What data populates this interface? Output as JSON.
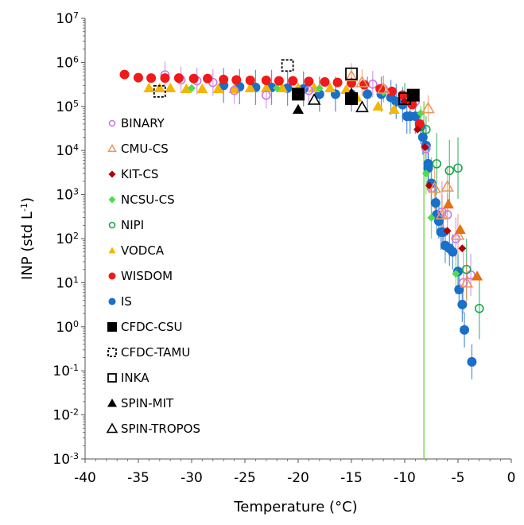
{
  "chart_data": {
    "type": "scatter",
    "title": "",
    "xlabel": "Temperature (°C)",
    "ylabel_main": "INP (std L",
    "ylabel_sup": "-1",
    "ylabel_close": ")",
    "xlim": [
      -40,
      0
    ],
    "ylim": [
      0.001,
      10000000
    ],
    "yscale": "log",
    "grid": false,
    "legend_position": "left-inside",
    "x_ticks": [
      {
        "value": -40,
        "label": "-40"
      },
      {
        "value": -35,
        "label": "-35"
      },
      {
        "value": -30,
        "label": "-30"
      },
      {
        "value": -25,
        "label": "-25"
      },
      {
        "value": -20,
        "label": "-20"
      },
      {
        "value": -15,
        "label": "-15"
      },
      {
        "value": -10,
        "label": "-10"
      },
      {
        "value": -5,
        "label": "-5"
      },
      {
        "value": 0,
        "label": "0"
      }
    ],
    "y_ticks": [
      {
        "exp": -3,
        "base": "10",
        "sup": "-3"
      },
      {
        "exp": -2,
        "base": "10",
        "sup": "-2"
      },
      {
        "exp": -1,
        "base": "10",
        "sup": "-1"
      },
      {
        "exp": 0,
        "base": "10",
        "sup": "0"
      },
      {
        "exp": 1,
        "base": "10",
        "sup": "1"
      },
      {
        "exp": 2,
        "base": "10",
        "sup": "2"
      },
      {
        "exp": 3,
        "base": "10",
        "sup": "3"
      },
      {
        "exp": 4,
        "base": "10",
        "sup": "4"
      },
      {
        "exp": 5,
        "base": "10",
        "sup": "5"
      },
      {
        "exp": 6,
        "base": "10",
        "sup": "6"
      },
      {
        "exp": 7,
        "base": "10",
        "sup": "7"
      }
    ],
    "vertical_line": {
      "x": -8.2,
      "color": "#66cc33"
    },
    "series": [
      {
        "name": "BINARY",
        "marker": "circle-open",
        "color": "#c77be6",
        "points": [
          [
            -32.5,
            520000.0
          ],
          [
            -31,
            400000.0
          ],
          [
            -29.5,
            380000.0
          ],
          [
            -28,
            350000.0
          ],
          [
            -26,
            230000.0
          ],
          [
            -23,
            180000.0
          ],
          [
            -19,
            230000.0
          ],
          [
            -13,
            320000.0
          ],
          [
            -12,
            250000.0
          ],
          [
            -9,
            130000.0
          ],
          [
            -8,
            11000.0
          ],
          [
            -7.5,
            1400.0
          ],
          [
            -6.5,
            400.0
          ],
          [
            -6,
            350.0
          ],
          [
            -5.2,
            100.0
          ],
          [
            -4.5,
            10.0
          ],
          [
            -3.8,
            15.0
          ]
        ],
        "errors": [
          [
            0.5,
            2
          ],
          [
            0.5,
            2
          ],
          [
            0.5,
            2
          ],
          [
            0.5,
            2
          ],
          [
            0.5,
            2
          ],
          [
            0.5,
            2
          ],
          [
            0.5,
            2
          ],
          [
            0.5,
            2
          ],
          [
            0.5,
            2
          ],
          [
            0.6,
            1.8
          ],
          [
            0.3,
            3
          ],
          [
            0.3,
            5
          ],
          [
            0.3,
            5
          ],
          [
            0.3,
            3
          ],
          [
            0.3,
            3
          ],
          [
            0.2,
            5
          ],
          [
            0.2,
            3
          ]
        ]
      },
      {
        "name": "CMU-CS",
        "marker": "triangle-open",
        "color": "#f0965a",
        "points": [
          [
            -15,
            480000.0
          ],
          [
            -14,
            350000.0
          ],
          [
            -12,
            250000.0
          ],
          [
            -7.8,
            90000.0
          ],
          [
            -7.2,
            1400.0
          ],
          [
            -6,
            1500.0
          ],
          [
            -6.5,
            350.0
          ],
          [
            -5,
            120.0
          ],
          [
            -4.2,
            10.0
          ]
        ],
        "errors": [
          [
            0.5,
            2
          ],
          [
            0.5,
            2
          ],
          [
            0.5,
            2
          ],
          [
            0.2,
            2
          ],
          [
            0.3,
            3
          ],
          [
            0.3,
            3
          ],
          [
            0.3,
            3
          ],
          [
            0.3,
            3
          ],
          [
            0.3,
            3
          ]
        ]
      },
      {
        "name": "KIT-CS",
        "marker": "diamond",
        "color": "#b30000",
        "points": [
          [
            -10,
            130000.0
          ],
          [
            -8.8,
            30000.0
          ],
          [
            -8.1,
            12000.0
          ],
          [
            -7.7,
            1600.0
          ],
          [
            -6,
            150.0
          ],
          [
            -4.6,
            60.0
          ]
        ],
        "errors": [
          [
            0.5,
            1
          ],
          [
            0.5,
            1
          ],
          [
            0.5,
            1
          ],
          [
            0.5,
            1
          ],
          [
            0.5,
            1
          ],
          [
            0.5,
            1
          ]
        ]
      },
      {
        "name": "NCSU-CS",
        "marker": "diamond",
        "color": "#4ddd4d",
        "points": [
          [
            -30,
            260000.0
          ],
          [
            -22,
            260000.0
          ],
          [
            -18,
            260000.0
          ],
          [
            -12,
            210000.0
          ],
          [
            -8.5,
            70000.0
          ],
          [
            -8,
            3000.0
          ],
          [
            -7.5,
            300.0
          ],
          [
            -5.2,
            16.0
          ]
        ],
        "errors": [
          [
            0.5,
            1
          ],
          [
            0.5,
            1
          ],
          [
            0.5,
            1
          ],
          [
            0.5,
            1
          ],
          [
            0.5,
            1.5
          ],
          [
            0.2,
            3
          ],
          [
            0.2,
            3
          ],
          [
            0.2,
            3
          ]
        ]
      },
      {
        "name": "NIPI",
        "marker": "circle-open",
        "color": "#1aa64a",
        "points": [
          [
            -10,
            170000.0
          ],
          [
            -8,
            30000.0
          ],
          [
            -7,
            5000.0
          ],
          [
            -5.8,
            3500.0
          ],
          [
            -5,
            4000.0
          ],
          [
            -4.2,
            20.0
          ],
          [
            -3,
            2.6
          ]
        ],
        "errors": [
          [
            0.5,
            2
          ],
          [
            0.3,
            2
          ],
          [
            0.3,
            5
          ],
          [
            0.3,
            5
          ],
          [
            0.3,
            5
          ],
          [
            0.3,
            5
          ],
          [
            0.3,
            5
          ]
        ]
      },
      {
        "name": "VODCA",
        "marker": "triangle",
        "color": "#f7b500",
        "points": [
          [
            -34,
            260000.0
          ],
          [
            -33,
            260000.0
          ],
          [
            -32,
            260000.0
          ],
          [
            -30.5,
            250000.0
          ],
          [
            -29,
            250000.0
          ],
          [
            -27.5,
            250000.0
          ],
          [
            -26,
            250000.0
          ],
          [
            -24.5,
            260000.0
          ],
          [
            -23,
            260000.0
          ],
          [
            -21.5,
            260000.0
          ],
          [
            -20,
            260000.0
          ],
          [
            -18.5,
            260000.0
          ],
          [
            -17,
            260000.0
          ],
          [
            -15.5,
            240000.0
          ],
          [
            -14.5,
            160000.0
          ],
          [
            -12.5,
            100000.0
          ],
          [
            -11,
            85000.0
          ]
        ],
        "errors": []
      },
      {
        "name": "VODCA-warm",
        "legend": false,
        "marker": "triangle",
        "color": "#e8700a",
        "points": [
          [
            -5.9,
            600.0
          ],
          [
            -4.8,
            160.0
          ],
          [
            -3.2,
            14.0
          ]
        ],
        "errors": []
      },
      {
        "name": "WISDOM",
        "marker": "circle",
        "color": "#f01a1a",
        "points": [
          [
            -36.3,
            530000.0
          ],
          [
            -35,
            450000.0
          ],
          [
            -33.8,
            440000.0
          ],
          [
            -32.5,
            440000.0
          ],
          [
            -31.2,
            440000.0
          ],
          [
            -29.8,
            430000.0
          ],
          [
            -28.5,
            430000.0
          ],
          [
            -27,
            410000.0
          ],
          [
            -25.8,
            400000.0
          ],
          [
            -24.5,
            390000.0
          ],
          [
            -23,
            390000.0
          ],
          [
            -21.8,
            380000.0
          ],
          [
            -20.5,
            380000.0
          ],
          [
            -19,
            370000.0
          ],
          [
            -17.5,
            360000.0
          ],
          [
            -16.3,
            350000.0
          ],
          [
            -15,
            340000.0
          ],
          [
            -13.8,
            310000.0
          ],
          [
            -12.3,
            250000.0
          ],
          [
            -11.2,
            220000.0
          ],
          [
            -10.2,
            180000.0
          ],
          [
            -9.3,
            110000.0
          ],
          [
            -8.6,
            40000.0
          ]
        ],
        "errors": []
      },
      {
        "name": "IS",
        "marker": "circle",
        "color": "#1a6fc9",
        "points": [
          [
            -27,
            300000.0
          ],
          [
            -25.5,
            280000.0
          ],
          [
            -24,
            270000.0
          ],
          [
            -22.5,
            270000.0
          ],
          [
            -21,
            260000.0
          ],
          [
            -19.5,
            250000.0
          ],
          [
            -18,
            190000.0
          ],
          [
            -16.5,
            190000.0
          ],
          [
            -15,
            190000.0
          ],
          [
            -13.5,
            190000.0
          ],
          [
            -12.2,
            190000.0
          ],
          [
            -11.3,
            160000.0
          ],
          [
            -10.8,
            130000.0
          ],
          [
            -10.2,
            110000.0
          ],
          [
            -9.8,
            60000.0
          ],
          [
            -9.5,
            60000.0
          ],
          [
            -9,
            60000.0
          ],
          [
            -8.5,
            35000.0
          ],
          [
            -8.3,
            20000.0
          ],
          [
            -8,
            13000.0
          ],
          [
            -7.8,
            5000.0
          ],
          [
            -7.8,
            4000.0
          ],
          [
            -7.5,
            1800.0
          ],
          [
            -7.1,
            650.0
          ],
          [
            -7,
            350.0
          ],
          [
            -6.8,
            250.0
          ],
          [
            -6.6,
            140.0
          ],
          [
            -6.4,
            140.0
          ],
          [
            -6.2,
            70.0
          ],
          [
            -5.8,
            60.0
          ],
          [
            -5.5,
            50.0
          ],
          [
            -5,
            18.0
          ],
          [
            -4.9,
            7.0
          ],
          [
            -4.6,
            3.2
          ],
          [
            -4.4,
            0.85
          ],
          [
            -3.7,
            0.16
          ]
        ],
        "errors": [
          [
            0.5,
            2.5
          ],
          [
            0.5,
            2.5
          ],
          [
            0.5,
            2.5
          ],
          [
            0.5,
            2.5
          ],
          [
            0.5,
            2.5
          ],
          [
            0.5,
            2.5
          ],
          [
            0.5,
            2.5
          ],
          [
            0.5,
            2.5
          ],
          [
            0.5,
            2.5
          ],
          [
            0.5,
            2.5
          ],
          [
            0.5,
            2.5
          ],
          [
            0.5,
            2.5
          ],
          [
            0.5,
            2.5
          ],
          [
            0.5,
            2.5
          ],
          [
            0.5,
            2.5
          ],
          [
            0.5,
            2.5
          ],
          [
            0.5,
            2.5
          ],
          [
            0.5,
            2.5
          ],
          [
            0.5,
            2.5
          ],
          [
            0.5,
            2.5
          ],
          [
            0.5,
            2.5
          ],
          [
            0.5,
            2.5
          ],
          [
            0.5,
            2.5
          ],
          [
            0.5,
            2.5
          ],
          [
            0.5,
            2.5
          ],
          [
            0.5,
            2.5
          ],
          [
            0.5,
            2.5
          ],
          [
            0.5,
            2.5
          ],
          [
            0.5,
            2.5
          ],
          [
            0.5,
            2.5
          ],
          [
            0.5,
            2.5
          ],
          [
            0.5,
            2.5
          ],
          [
            0.5,
            2.5
          ],
          [
            0.5,
            2.5
          ],
          [
            0.5,
            2.5
          ],
          [
            0.5,
            2.5
          ]
        ]
      },
      {
        "name": "CFDC-CSU",
        "marker": "square",
        "color": "#000000",
        "points": [
          [
            -20,
            190000.0
          ],
          [
            -15,
            150000.0
          ],
          [
            -9.2,
            180000.0
          ]
        ],
        "errors": []
      },
      {
        "name": "CFDC-TAMU",
        "marker": "square-dashed",
        "color": "#000000",
        "points": [
          [
            -33,
            220000.0
          ],
          [
            -21,
            850000.0
          ]
        ],
        "errors": []
      },
      {
        "name": "INKA",
        "marker": "square-open",
        "color": "#000000",
        "points": [
          [
            -15,
            550000.0
          ],
          [
            -10,
            150000.0
          ]
        ],
        "errors": []
      },
      {
        "name": "SPIN-MIT",
        "marker": "triangle",
        "color": "#000000",
        "points": [
          [
            -20,
            85000.0
          ],
          [
            -15,
            200000.0
          ]
        ],
        "errors": []
      },
      {
        "name": "SPIN-TROPOS",
        "marker": "triangle-open",
        "color": "#000000",
        "points": [
          [
            -18.5,
            140000.0
          ],
          [
            -14,
            95000.0
          ]
        ],
        "errors": []
      }
    ]
  }
}
